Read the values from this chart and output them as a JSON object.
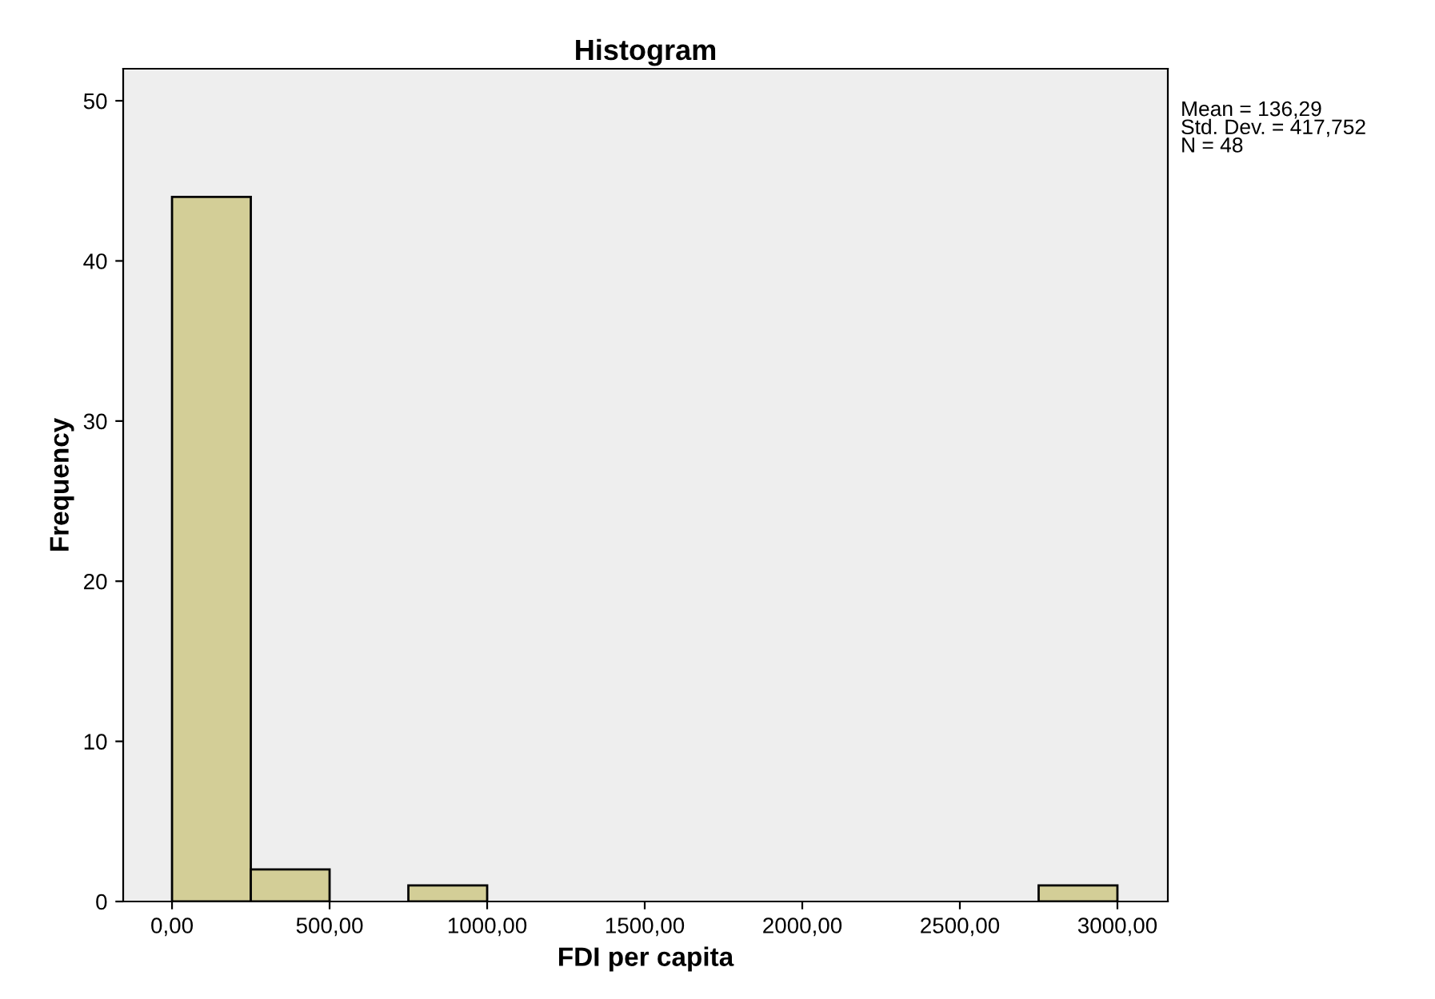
{
  "chart_data": {
    "type": "histogram",
    "title": "Histogram",
    "xlabel": "FDI per capita",
    "ylabel": "Frequency",
    "bins": [
      0,
      250,
      500,
      750,
      1000,
      1250,
      1500,
      1750,
      2000,
      2250,
      2500,
      2750,
      3000
    ],
    "values": [
      44,
      2,
      0,
      1,
      0,
      0,
      0,
      0,
      0,
      0,
      0,
      1
    ],
    "color": "#d3ce97",
    "xlim": [
      -155,
      3160
    ],
    "ylim": [
      0,
      52
    ],
    "xticks": [
      {
        "value": 0,
        "label": "0,00"
      },
      {
        "value": 500,
        "label": "500,00"
      },
      {
        "value": 1000,
        "label": "1000,00"
      },
      {
        "value": 1500,
        "label": "1500,00"
      },
      {
        "value": 2000,
        "label": "2000,00"
      },
      {
        "value": 2500,
        "label": "2500,00"
      },
      {
        "value": 3000,
        "label": "3000,00"
      }
    ],
    "yticks": [
      0,
      10,
      20,
      30,
      40,
      50
    ],
    "annotations": [
      "Mean = 136,29\nStd. Dev. = 417,752\nN = 48"
    ],
    "grid": false,
    "legend": false
  }
}
